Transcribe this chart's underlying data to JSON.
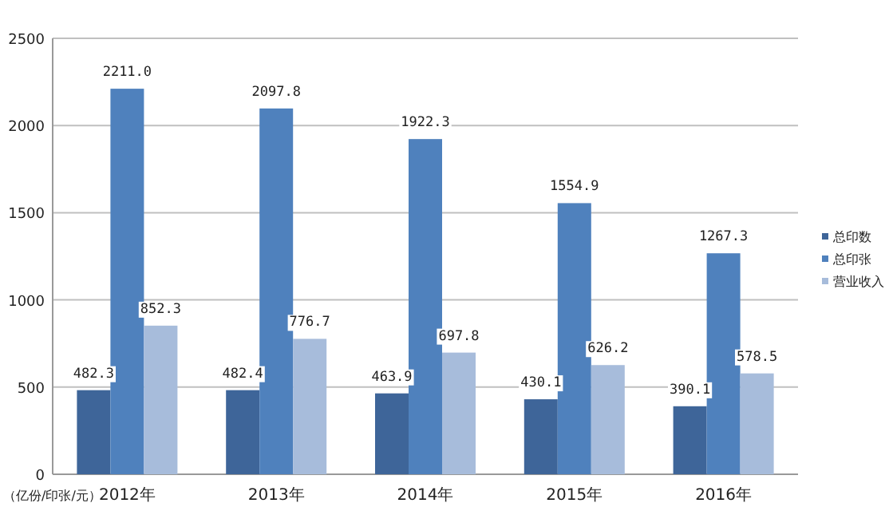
{
  "chart_data": {
    "type": "bar",
    "categories": [
      "2012年",
      "2013年",
      "2014年",
      "2015年",
      "2016年"
    ],
    "series": [
      {
        "name": "总印数",
        "color": "#3e6599",
        "values": [
          482.3,
          482.4,
          463.9,
          430.1,
          390.1
        ],
        "value_labels": [
          "482.3",
          "482.4",
          "463.9",
          "430.1",
          "390.1"
        ]
      },
      {
        "name": "总印张",
        "color": "#4f81bd",
        "values": [
          2211.0,
          2097.8,
          1922.3,
          1554.9,
          1267.3
        ],
        "value_labels": [
          "2211.0",
          "2097.8",
          "1922.3",
          "1554.9",
          "1267.3"
        ]
      },
      {
        "name": "营业收入",
        "color": "#a7bcdb",
        "values": [
          852.3,
          776.7,
          697.8,
          626.2,
          578.5
        ],
        "value_labels": [
          "852.3",
          "776.7",
          "697.8",
          "626.2",
          "578.5"
        ]
      }
    ],
    "ylim": [
      0,
      2500
    ],
    "yticks": [
      0,
      500,
      1000,
      1500,
      2000,
      2500
    ],
    "annotations": [
      "（亿份/印张/元）"
    ],
    "grid": "y",
    "legend": "right"
  }
}
